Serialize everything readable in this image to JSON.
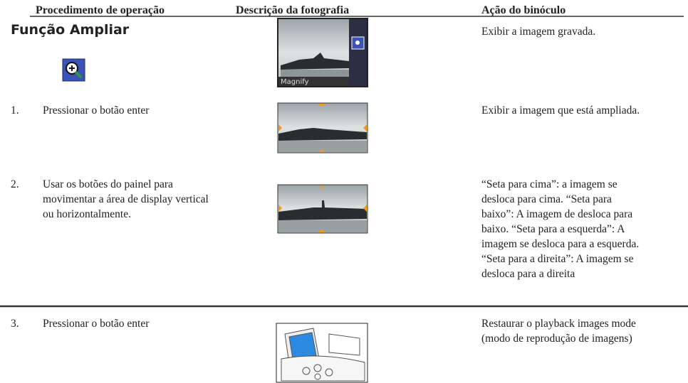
{
  "header": {
    "columns": [
      "Procedimento de operação",
      "Descrição da fotografia",
      "Ação do binóculo"
    ]
  },
  "section": {
    "title": "Função Ampliar",
    "action": "Exibir a imagem gravada.",
    "photo_label": "Magnify"
  },
  "rows": [
    {
      "number": "1.",
      "operation": [
        "Pressionar o botão enter"
      ],
      "action": [
        "Exibir a imagem que está ampliada."
      ]
    },
    {
      "number": "2.",
      "operation": [
        "Usar os botões do painel para",
        "movimentar a área de display vertical",
        "ou horizontalmente."
      ],
      "action": [
        "“Seta para cima”: a imagem se",
        "desloca para cima. “Seta para",
        "baixo”: A imagem de desloca para",
        "baixo. “Seta para a esquerda”: A",
        "imagem se desloca para a esquerda.",
        "“Seta para a direita”: A imagem se",
        "desloca para a direita"
      ]
    },
    {
      "number": "3.",
      "operation": [
        "Pressionar o botão enter"
      ],
      "action": [
        "Restaurar o playback images mode",
        "(modo de reprodução de imagens)"
      ]
    }
  ]
}
